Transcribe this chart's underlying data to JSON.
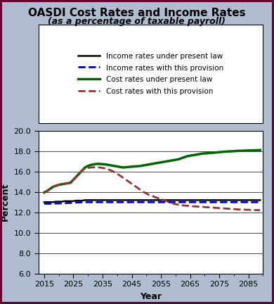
{
  "title_line1": "OASDI Cost Rates and Income Rates",
  "title_line2": "(as a percentage of taxable payroll)",
  "xlabel": "Year",
  "ylabel": "Percent",
  "xlim": [
    2013,
    2090
  ],
  "ylim": [
    6.0,
    20.0
  ],
  "yticks": [
    6.0,
    8.0,
    10.0,
    12.0,
    14.0,
    16.0,
    18.0,
    20.0
  ],
  "xticks": [
    2015,
    2025,
    2035,
    2045,
    2055,
    2065,
    2075,
    2085
  ],
  "background_color": "#b0bcd0",
  "plot_bg_color": "#ffffff",
  "income_present_law": {
    "x": [
      2015,
      2016,
      2017,
      2018,
      2019,
      2020,
      2021,
      2022,
      2023,
      2024,
      2025,
      2026,
      2027,
      2028,
      2029,
      2030,
      2031,
      2032,
      2033,
      2034,
      2035,
      2036,
      2037,
      2038,
      2039,
      2040,
      2041,
      2042,
      2043,
      2044,
      2045,
      2046,
      2047,
      2048,
      2049,
      2050,
      2051,
      2052,
      2053,
      2054,
      2055,
      2056,
      2057,
      2058,
      2059,
      2060,
      2061,
      2062,
      2063,
      2064,
      2065,
      2066,
      2067,
      2068,
      2069,
      2070,
      2071,
      2072,
      2073,
      2074,
      2075,
      2076,
      2077,
      2078,
      2079,
      2080,
      2081,
      2082,
      2083,
      2084,
      2085,
      2086,
      2087,
      2088,
      2089
    ],
    "y": [
      13.0,
      13.0,
      13.0,
      13.0,
      13.05,
      13.05,
      13.05,
      13.1,
      13.1,
      13.1,
      13.1,
      13.15,
      13.15,
      13.15,
      13.2,
      13.2,
      13.2,
      13.2,
      13.2,
      13.2,
      13.2,
      13.2,
      13.2,
      13.2,
      13.2,
      13.2,
      13.2,
      13.2,
      13.2,
      13.2,
      13.2,
      13.2,
      13.2,
      13.2,
      13.2,
      13.2,
      13.2,
      13.2,
      13.2,
      13.2,
      13.2,
      13.2,
      13.2,
      13.2,
      13.2,
      13.2,
      13.2,
      13.2,
      13.2,
      13.2,
      13.2,
      13.2,
      13.2,
      13.2,
      13.2,
      13.2,
      13.2,
      13.2,
      13.2,
      13.2,
      13.2,
      13.2,
      13.2,
      13.2,
      13.2,
      13.2,
      13.2,
      13.2,
      13.2,
      13.2,
      13.2,
      13.2,
      13.2,
      13.2,
      13.2
    ],
    "color": "#000000",
    "lw": 1.8,
    "ls": "-",
    "label": "Income rates under present law"
  },
  "income_provision": {
    "x": [
      2015,
      2016,
      2017,
      2018,
      2019,
      2020,
      2021,
      2022,
      2023,
      2024,
      2025,
      2026,
      2027,
      2028,
      2029,
      2030,
      2031,
      2032,
      2033,
      2034,
      2035,
      2036,
      2037,
      2038,
      2039,
      2040,
      2041,
      2042,
      2043,
      2044,
      2045,
      2046,
      2047,
      2048,
      2049,
      2050,
      2051,
      2052,
      2053,
      2054,
      2055,
      2056,
      2057,
      2058,
      2059,
      2060,
      2061,
      2062,
      2063,
      2064,
      2065,
      2066,
      2067,
      2068,
      2069,
      2070,
      2071,
      2072,
      2073,
      2074,
      2075,
      2076,
      2077,
      2078,
      2079,
      2080,
      2081,
      2082,
      2083,
      2084,
      2085,
      2086,
      2087,
      2088,
      2089
    ],
    "y": [
      12.85,
      12.85,
      12.85,
      12.85,
      12.87,
      12.88,
      12.89,
      12.9,
      12.92,
      12.93,
      12.95,
      12.97,
      12.98,
      12.99,
      13.0,
      13.0,
      13.0,
      13.0,
      13.0,
      13.0,
      13.0,
      13.0,
      13.0,
      13.0,
      13.0,
      13.0,
      13.0,
      13.0,
      13.0,
      13.0,
      13.0,
      13.0,
      13.0,
      13.0,
      13.0,
      13.0,
      13.0,
      13.0,
      13.0,
      13.0,
      13.0,
      13.0,
      13.0,
      13.0,
      13.0,
      13.0,
      13.0,
      13.0,
      13.0,
      13.0,
      13.0,
      13.0,
      13.0,
      13.0,
      13.0,
      13.0,
      13.0,
      13.0,
      13.0,
      13.0,
      13.0,
      13.0,
      13.0,
      13.0,
      13.0,
      13.0,
      13.0,
      13.0,
      13.0,
      13.0,
      13.0,
      13.0,
      13.0,
      13.0,
      13.0
    ],
    "color": "#0000cc",
    "lw": 2.0,
    "ls": "--",
    "label": "Income rates with this provision"
  },
  "cost_present_law": {
    "x": [
      2015,
      2016,
      2017,
      2018,
      2019,
      2020,
      2021,
      2022,
      2023,
      2024,
      2025,
      2026,
      2027,
      2028,
      2029,
      2030,
      2031,
      2032,
      2033,
      2034,
      2035,
      2036,
      2037,
      2038,
      2039,
      2040,
      2041,
      2042,
      2043,
      2044,
      2045,
      2046,
      2047,
      2048,
      2049,
      2050,
      2051,
      2052,
      2053,
      2054,
      2055,
      2056,
      2057,
      2058,
      2059,
      2060,
      2061,
      2062,
      2063,
      2064,
      2065,
      2066,
      2067,
      2068,
      2069,
      2070,
      2071,
      2072,
      2073,
      2074,
      2075,
      2076,
      2077,
      2078,
      2079,
      2080,
      2081,
      2082,
      2083,
      2084,
      2085,
      2086,
      2087,
      2088,
      2089
    ],
    "y": [
      13.95,
      14.1,
      14.3,
      14.5,
      14.6,
      14.7,
      14.75,
      14.8,
      14.85,
      14.9,
      15.2,
      15.5,
      15.8,
      16.1,
      16.4,
      16.55,
      16.65,
      16.7,
      16.75,
      16.75,
      16.72,
      16.7,
      16.65,
      16.6,
      16.55,
      16.5,
      16.45,
      16.4,
      16.42,
      16.45,
      16.48,
      16.5,
      16.52,
      16.55,
      16.6,
      16.65,
      16.7,
      16.75,
      16.8,
      16.85,
      16.9,
      16.95,
      17.0,
      17.05,
      17.1,
      17.15,
      17.2,
      17.3,
      17.4,
      17.5,
      17.55,
      17.6,
      17.65,
      17.7,
      17.75,
      17.78,
      17.8,
      17.83,
      17.85,
      17.87,
      17.9,
      17.92,
      17.95,
      17.97,
      17.98,
      18.0,
      18.02,
      18.03,
      18.04,
      18.05,
      18.06,
      18.07,
      18.08,
      18.09,
      18.1
    ],
    "color": "#006600",
    "lw": 2.5,
    "ls": "-",
    "label": "Cost rates under present law"
  },
  "cost_provision": {
    "x": [
      2015,
      2016,
      2017,
      2018,
      2019,
      2020,
      2021,
      2022,
      2023,
      2024,
      2025,
      2026,
      2027,
      2028,
      2029,
      2030,
      2031,
      2032,
      2033,
      2034,
      2035,
      2036,
      2037,
      2038,
      2039,
      2040,
      2041,
      2042,
      2043,
      2044,
      2045,
      2046,
      2047,
      2048,
      2049,
      2050,
      2051,
      2052,
      2053,
      2054,
      2055,
      2056,
      2057,
      2058,
      2059,
      2060,
      2061,
      2062,
      2063,
      2064,
      2065,
      2066,
      2067,
      2068,
      2069,
      2070,
      2071,
      2072,
      2073,
      2074,
      2075,
      2076,
      2077,
      2078,
      2079,
      2080,
      2081,
      2082,
      2083,
      2084,
      2085,
      2086,
      2087,
      2088,
      2089
    ],
    "y": [
      13.95,
      14.1,
      14.3,
      14.5,
      14.6,
      14.7,
      14.75,
      14.8,
      14.85,
      14.9,
      15.2,
      15.5,
      15.8,
      16.1,
      16.3,
      16.35,
      16.4,
      16.42,
      16.42,
      16.4,
      16.35,
      16.3,
      16.2,
      16.1,
      15.95,
      15.78,
      15.6,
      15.4,
      15.2,
      15.0,
      14.8,
      14.6,
      14.4,
      14.2,
      14.0,
      13.85,
      13.7,
      13.6,
      13.5,
      13.4,
      13.3,
      13.2,
      13.1,
      13.0,
      12.9,
      12.8,
      12.75,
      12.7,
      12.67,
      12.65,
      12.63,
      12.6,
      12.58,
      12.56,
      12.54,
      12.52,
      12.5,
      12.48,
      12.46,
      12.44,
      12.42,
      12.4,
      12.38,
      12.36,
      12.34,
      12.32,
      12.3,
      12.28,
      12.27,
      12.26,
      12.25,
      12.24,
      12.23,
      12.22,
      12.21
    ],
    "color": "#993333",
    "lw": 2.0,
    "ls": "--",
    "label": "Cost rates with this provision"
  },
  "fig_width": 3.9,
  "fig_height": 4.32,
  "border_color": "#660033"
}
